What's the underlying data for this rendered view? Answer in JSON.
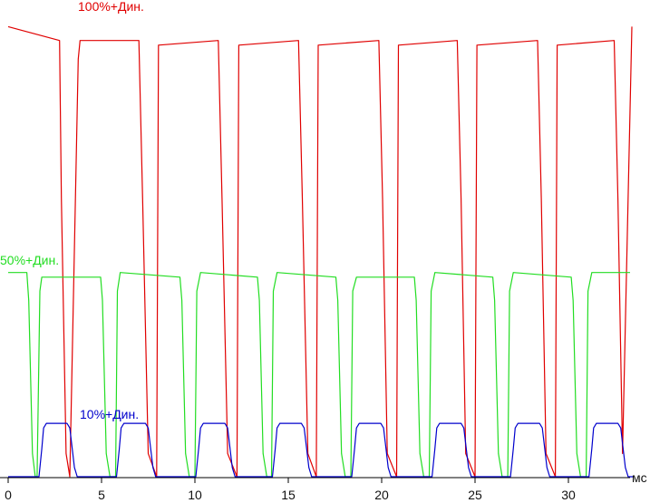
{
  "chart_data": {
    "type": "line",
    "xlabel": "мс",
    "ylabel": "",
    "xlim": [
      0,
      33.5
    ],
    "ylim": [
      0,
      100
    ],
    "x_ticks": [
      0,
      5,
      10,
      15,
      20,
      25,
      30
    ],
    "x_tick_labels": [
      "0",
      "5",
      "10",
      "15",
      "20",
      "25",
      "30"
    ],
    "grid": false,
    "period_ms": 8.33,
    "series": [
      {
        "name": "100%+Дин.",
        "color": "#e00000",
        "high": 98,
        "low": 0,
        "x": [
          0,
          2.75,
          2.85,
          3.1,
          3.3,
          3.75,
          3.85,
          7.0,
          7.2,
          7.5,
          7.95,
          8.05,
          11.25,
          11.45,
          11.75,
          12.25,
          12.35,
          15.55,
          15.75,
          16.05,
          16.5,
          16.6,
          19.85,
          20.05,
          20.3,
          20.8,
          20.9,
          24.05,
          24.25,
          24.5,
          25.0,
          25.1,
          28.35,
          28.55,
          28.8,
          29.3,
          29.4,
          32.45,
          32.65,
          32.9,
          33.4
        ],
        "y": [
          97,
          94,
          60,
          5,
          0,
          90,
          94,
          94,
          60,
          5,
          0,
          93,
          94,
          60,
          5,
          0,
          93,
          94,
          60,
          5,
          0,
          93,
          94,
          60,
          5,
          0,
          93,
          94,
          60,
          5,
          0,
          93,
          94,
          60,
          5,
          0,
          93,
          94,
          60,
          5,
          97
        ]
      },
      {
        "name": "50%+Дин.",
        "color": "#22dd22",
        "high": 44,
        "low": 0,
        "x": [
          0,
          1.0,
          1.1,
          1.3,
          1.45,
          1.55,
          1.7,
          1.8,
          4.95,
          5.05,
          5.25,
          5.45,
          5.75,
          5.85,
          6.0,
          9.2,
          9.3,
          9.5,
          9.7,
          10.0,
          10.1,
          10.3,
          13.35,
          13.45,
          13.65,
          13.85,
          14.1,
          14.2,
          14.4,
          17.55,
          17.65,
          17.85,
          18.05,
          18.35,
          18.45,
          18.65,
          21.75,
          21.85,
          22.05,
          22.25,
          22.55,
          22.65,
          22.85,
          25.95,
          26.05,
          26.25,
          26.45,
          26.75,
          26.85,
          27.05,
          30.15,
          30.25,
          30.45,
          30.65,
          30.95,
          31.05,
          31.25,
          33.3
        ],
        "y": [
          44,
          44,
          38,
          5,
          0,
          0,
          40,
          43,
          43,
          38,
          5,
          0,
          0,
          40,
          44,
          43,
          38,
          5,
          0,
          0,
          40,
          44,
          43,
          38,
          5,
          0,
          0,
          40,
          44,
          43,
          38,
          5,
          0,
          0,
          40,
          43,
          43,
          38,
          5,
          0,
          0,
          40,
          44,
          43,
          38,
          5,
          0,
          0,
          40,
          44,
          43,
          38,
          5,
          0,
          0,
          40,
          44,
          44
        ]
      },
      {
        "name": "10%+Дин.",
        "color": "#0000cc",
        "high": 11.5,
        "low": 0,
        "x": [
          0,
          1.65,
          1.8,
          1.9,
          2.05,
          3.15,
          3.3,
          3.55,
          3.7,
          5.8,
          5.95,
          6.05,
          6.2,
          7.35,
          7.5,
          7.75,
          7.9,
          10.05,
          10.2,
          10.3,
          10.45,
          11.6,
          11.75,
          12.0,
          12.15,
          14.15,
          14.3,
          14.4,
          14.55,
          15.7,
          15.85,
          16.1,
          16.25,
          18.4,
          18.55,
          18.65,
          18.8,
          19.95,
          20.1,
          20.35,
          20.5,
          22.7,
          22.85,
          22.95,
          23.1,
          24.25,
          24.4,
          24.65,
          24.8,
          26.9,
          27.05,
          27.15,
          27.3,
          28.45,
          28.6,
          28.85,
          29.0,
          31.1,
          31.25,
          31.35,
          31.5,
          32.65,
          32.8,
          33.05,
          33.2,
          33.5
        ],
        "y": [
          0,
          0,
          6,
          10.5,
          11.5,
          11.5,
          10.5,
          2,
          0,
          0,
          6,
          10.5,
          11.5,
          11.5,
          10.5,
          2,
          0,
          0,
          6,
          10.5,
          11.5,
          11.5,
          10.5,
          2,
          0,
          0,
          6,
          10.5,
          11.5,
          11.5,
          10.5,
          2,
          0,
          0,
          6,
          10.5,
          11.5,
          11.5,
          10.5,
          2,
          0,
          0,
          6,
          10.5,
          11.5,
          11.5,
          10.5,
          2,
          0,
          0,
          6,
          10.5,
          11.5,
          11.5,
          10.5,
          2,
          0,
          0,
          6,
          10.5,
          11.5,
          11.5,
          10.5,
          2,
          0,
          0
        ]
      }
    ]
  }
}
